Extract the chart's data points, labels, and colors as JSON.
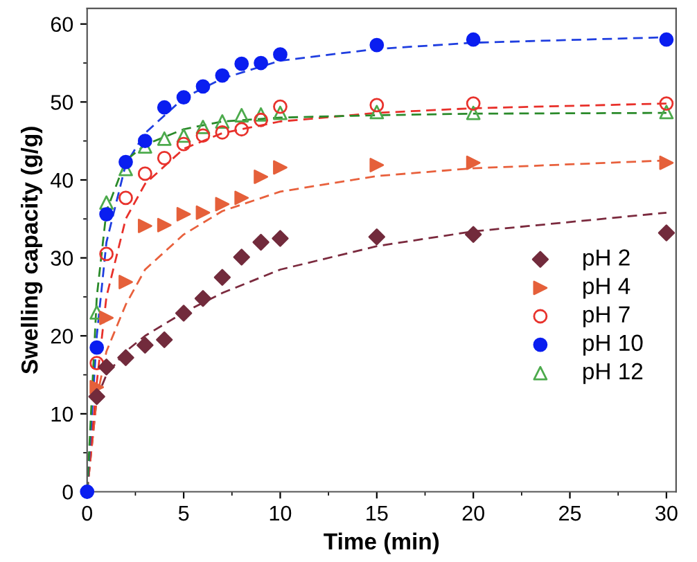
{
  "chart_data": {
    "type": "scatter",
    "xlabel": "Time (min)",
    "ylabel": "Swelling capacity (g/g)",
    "xlim": [
      0,
      30.5
    ],
    "ylim": [
      0,
      62
    ],
    "xticks": [
      0,
      5,
      10,
      15,
      20,
      25,
      30
    ],
    "yticks": [
      0,
      10,
      20,
      30,
      40,
      50,
      60
    ],
    "grid": false,
    "legend": "bottom right",
    "series": [
      {
        "name": "pH 2",
        "color": "#722b3c",
        "marker": "diamond",
        "x": [
          0.5,
          1,
          2,
          3,
          4,
          5,
          6,
          7,
          8,
          9,
          10,
          15,
          20,
          30
        ],
        "values": [
          12.2,
          16.0,
          17.2,
          18.8,
          19.5,
          22.9,
          24.8,
          27.5,
          30.1,
          32.0,
          32.5,
          32.7,
          33.0,
          33.2
        ]
      },
      {
        "name": "pH 4",
        "color": "#e5603a",
        "marker": "triangle-right",
        "x": [
          0.5,
          1,
          2,
          3,
          4,
          5,
          6,
          7,
          8,
          9,
          10,
          15,
          20,
          30
        ],
        "values": [
          13.4,
          22.3,
          26.9,
          34.1,
          34.2,
          35.6,
          35.8,
          36.9,
          37.7,
          40.4,
          41.6,
          41.9,
          42.2,
          42.2
        ]
      },
      {
        "name": "pH 7",
        "color": "#e8322c",
        "marker": "circle-open",
        "x": [
          0.5,
          1,
          2,
          3,
          4,
          5,
          6,
          7,
          8,
          9,
          10,
          15,
          20,
          30
        ],
        "values": [
          16.5,
          30.5,
          37.7,
          40.8,
          42.8,
          44.6,
          45.7,
          46.1,
          46.5,
          47.7,
          49.4,
          49.6,
          49.8,
          49.8
        ]
      },
      {
        "name": "pH 10",
        "color": "#0a1ef0",
        "marker": "circle",
        "x": [
          0,
          0.5,
          1,
          2,
          3,
          4,
          5,
          6,
          7,
          8,
          9,
          10,
          15,
          20,
          30
        ],
        "values": [
          0,
          18.5,
          35.6,
          42.3,
          45.0,
          49.3,
          50.6,
          52.0,
          53.4,
          54.9,
          55.0,
          56.1,
          57.3,
          58.0,
          58.0
        ]
      },
      {
        "name": "pH 12",
        "color": "#4caa4c",
        "marker": "triangle-open",
        "x": [
          0.5,
          1,
          2,
          3,
          4,
          5,
          6,
          7,
          8,
          9,
          10,
          15,
          20,
          30
        ],
        "values": [
          23.0,
          37.1,
          41.4,
          44.3,
          45.3,
          45.7,
          46.8,
          47.5,
          48.3,
          48.4,
          48.6,
          48.7,
          48.6,
          48.7
        ]
      },
      {
        "type": "line",
        "line_style": "dashed",
        "color": "#7b2a3e",
        "x": [
          0,
          0.5,
          1,
          2,
          3,
          5,
          7,
          10,
          15,
          20,
          30
        ],
        "values": [
          0,
          12,
          15,
          18,
          20,
          23,
          25.5,
          28.5,
          31.5,
          33.4,
          35.8
        ]
      },
      {
        "type": "line",
        "line_style": "dashed",
        "color": "#e8603c",
        "x": [
          0,
          0.5,
          1,
          2,
          3,
          5,
          7,
          10,
          15,
          20,
          30
        ],
        "values": [
          0,
          12,
          18,
          24,
          28.5,
          33,
          36,
          38.5,
          40.5,
          41.5,
          42.5
        ]
      },
      {
        "type": "line",
        "line_style": "dashed",
        "color": "#e8302a",
        "x": [
          0,
          0.5,
          1,
          2,
          3,
          5,
          7,
          10,
          15,
          20,
          30
        ],
        "values": [
          0,
          14,
          25,
          35,
          39.5,
          44,
          46,
          47.5,
          48.6,
          49.2,
          49.8
        ]
      },
      {
        "type": "line",
        "line_style": "dashed",
        "color": "#1f3ee0",
        "x": [
          0,
          0.5,
          1,
          2,
          3,
          5,
          7,
          10,
          15,
          20,
          30
        ],
        "values": [
          0,
          20,
          32,
          42,
          46,
          50.5,
          53,
          55.3,
          56.8,
          57.6,
          58.3
        ]
      },
      {
        "type": "line",
        "line_style": "dashed",
        "color": "#2a8a2a",
        "x": [
          0,
          0.5,
          1,
          2,
          3,
          5,
          7,
          10,
          15,
          20,
          30
        ],
        "values": [
          0,
          25,
          36,
          42.5,
          44.5,
          46.5,
          47.5,
          48,
          48.3,
          48.5,
          48.6
        ]
      }
    ]
  }
}
